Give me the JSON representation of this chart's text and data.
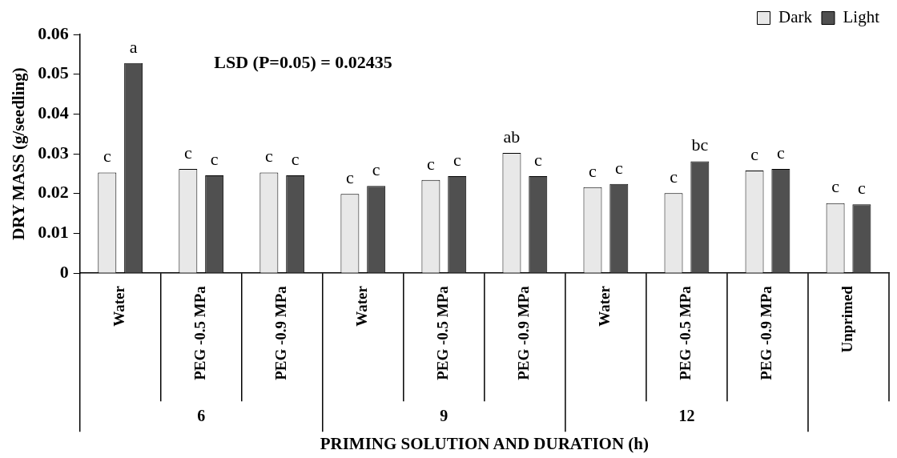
{
  "chart_data": {
    "type": "bar",
    "xlabel": "PRIMING SOLUTION AND DURATION (h)",
    "ylabel": "DRY MASS (g/seedling)",
    "categories": [
      "Water",
      "PEG -0.5 MPa",
      "PEG -0.9 MPa",
      "Water",
      "PEG -0.5 MPa",
      "PEG -0.9 MPa",
      "Water",
      "PEG -0.5 MPa",
      "PEG -0.9 MPa",
      "Unprimed"
    ],
    "series": [
      {
        "name": "Dark",
        "color": "#e8e8e8",
        "values": [
          0.0253,
          0.0262,
          0.0253,
          0.0199,
          0.0234,
          0.0302,
          0.0216,
          0.0201,
          0.0258,
          0.0176
        ],
        "value_labels": [
          "c",
          "c",
          "c",
          "c",
          "c",
          "ab",
          "c",
          "c",
          "c",
          "c"
        ]
      },
      {
        "name": "Light",
        "color": "#505050",
        "values": [
          0.0528,
          0.0246,
          0.0246,
          0.0219,
          0.0244,
          0.0244,
          0.0224,
          0.0281,
          0.0262,
          0.0173
        ],
        "value_labels": [
          "a",
          "c",
          "c",
          "c",
          "c",
          "c",
          "c",
          "bc",
          "c",
          "c"
        ]
      }
    ],
    "ylim": [
      0,
      0.06
    ],
    "yticks": [
      0,
      0.01,
      0.02,
      0.03,
      0.04,
      0.05,
      0.06
    ],
    "grid": false,
    "legend": "top right",
    "annotations": [
      "LSD (P=0.05) = 0.02435",
      "6",
      "9",
      "12"
    ]
  }
}
